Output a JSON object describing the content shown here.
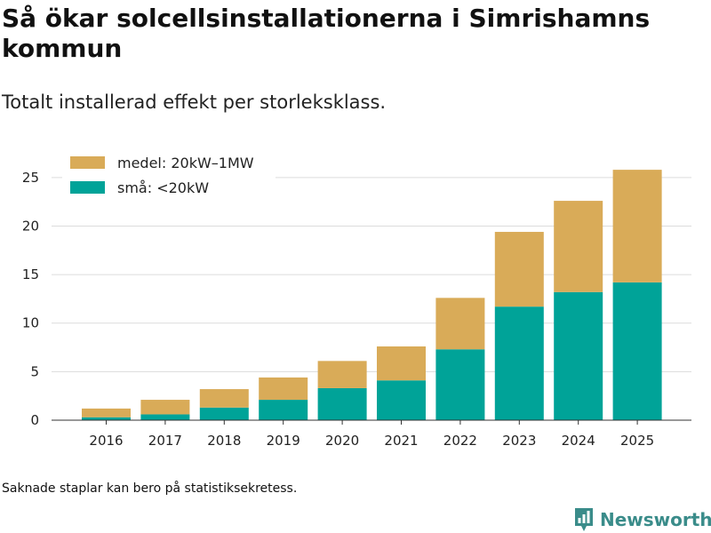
{
  "title": "Så ökar solcellsinstallationerna i Simrishamns kommun",
  "subtitle": "Totalt installerad effekt per storleksklass.",
  "footnote": "Saknade staplar kan bero på statistiksekretess.",
  "brand": {
    "name": "Newsworthy",
    "icon": "bar-chart-speech-bubble-icon",
    "color": "#3a8c8a"
  },
  "chart_data": {
    "type": "bar",
    "stacked": true,
    "title": "Så ökar solcellsinstallationerna i Simrishamns kommun",
    "subtitle": "Totalt installerad effekt per storleksklass.",
    "xlabel": "",
    "ylabel": "",
    "categories": [
      "2016",
      "2017",
      "2018",
      "2019",
      "2020",
      "2021",
      "2022",
      "2023",
      "2024",
      "2025"
    ],
    "series": [
      {
        "name": "små: <20kW",
        "color": "#00a398",
        "values": [
          0.3,
          0.6,
          1.3,
          2.1,
          3.3,
          4.1,
          7.3,
          11.7,
          13.2,
          14.2
        ]
      },
      {
        "name": "medel: 20kW–1MW",
        "color": "#d9ab58",
        "values": [
          0.9,
          1.5,
          1.9,
          2.3,
          2.8,
          3.5,
          5.3,
          7.7,
          9.4,
          11.6
        ]
      }
    ],
    "ylim": [
      0,
      27
    ],
    "yticks": [
      0,
      5,
      10,
      15,
      20,
      25
    ],
    "grid": true,
    "legend_position": "top-left"
  }
}
